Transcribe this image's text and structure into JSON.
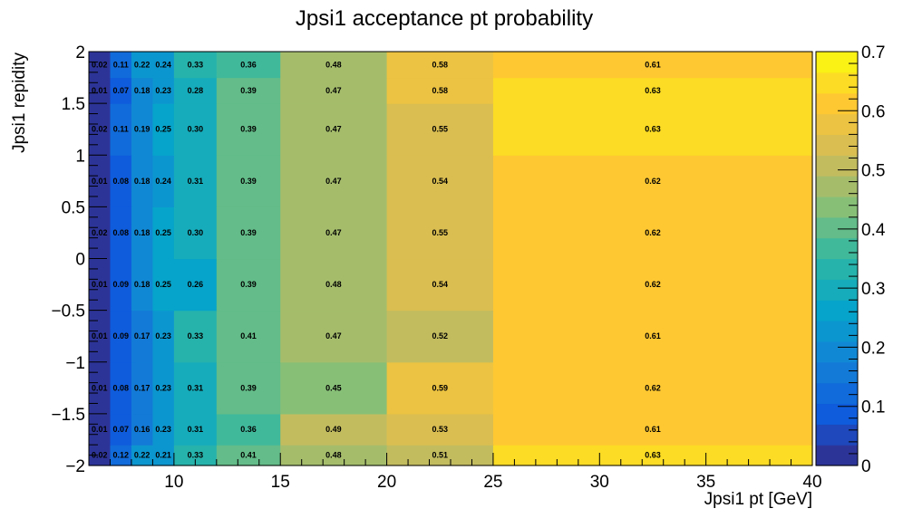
{
  "chart_data": {
    "type": "heatmap",
    "title": "Jpsi1 acceptance pt probability",
    "xlabel": "Jpsi1 pt [GeV]",
    "ylabel": "Jpsi1 repidity",
    "x_edges": [
      6,
      7,
      8,
      9,
      10,
      12,
      15,
      20,
      25,
      40
    ],
    "y_edges": [
      -2,
      -1.8,
      -1.5,
      -1,
      -0.5,
      0,
      0.5,
      1,
      1.5,
      1.75,
      2
    ],
    "xlim": [
      6,
      40
    ],
    "ylim": [
      -2,
      2
    ],
    "x_ticks": [
      10,
      15,
      20,
      25,
      30,
      35,
      40
    ],
    "y_ticks": [
      -2,
      -1.5,
      -1,
      -0.5,
      0,
      0.5,
      1,
      1.5,
      2
    ],
    "y_tick_labels": [
      "−2",
      "−1.5",
      "−1",
      "−0.5",
      "0",
      "0.5",
      "1",
      "1.5",
      "2"
    ],
    "colorbar": {
      "range": [
        0,
        0.7
      ],
      "ticks": [
        0,
        0.1,
        0.2,
        0.3,
        0.4,
        0.5,
        0.6,
        0.7
      ],
      "tick_labels": [
        "0",
        "0.1",
        "0.2",
        "0.3",
        "0.4",
        "0.5",
        "0.6",
        "0.7"
      ],
      "levels": 20
    },
    "palette": [
      "#352a87",
      "#0f5cdd",
      "#1481d6",
      "#06a4ca",
      "#2eb7a4",
      "#87bf77",
      "#d1bb59",
      "#fec832",
      "#f9fb0e"
    ],
    "values": [
      [
        "0.02",
        "0.12",
        "0.22",
        "0.21",
        "0.33",
        "0.41",
        "0.48",
        "0.51",
        "0.63"
      ],
      [
        "0.01",
        "0.07",
        "0.16",
        "0.23",
        "0.31",
        "0.36",
        "0.49",
        "0.53",
        "0.61"
      ],
      [
        "0.01",
        "0.08",
        "0.17",
        "0.23",
        "0.31",
        "0.39",
        "0.45",
        "0.59",
        "0.62"
      ],
      [
        "0.01",
        "0.09",
        "0.17",
        "0.23",
        "0.33",
        "0.41",
        "0.47",
        "0.52",
        "0.61"
      ],
      [
        "0.01",
        "0.09",
        "0.18",
        "0.25",
        "0.26",
        "0.39",
        "0.48",
        "0.54",
        "0.62"
      ],
      [
        "0.02",
        "0.08",
        "0.18",
        "0.25",
        "0.30",
        "0.39",
        "0.47",
        "0.55",
        "0.62"
      ],
      [
        "0.01",
        "0.08",
        "0.18",
        "0.24",
        "0.31",
        "0.39",
        "0.47",
        "0.54",
        "0.62"
      ],
      [
        "0.02",
        "0.11",
        "0.19",
        "0.25",
        "0.30",
        "0.39",
        "0.47",
        "0.55",
        "0.63"
      ],
      [
        "0.01",
        "0.07",
        "0.18",
        "0.23",
        "0.28",
        "0.39",
        "0.47",
        "0.58",
        "0.63"
      ],
      [
        "0.02",
        "0.11",
        "0.22",
        "0.24",
        "0.33",
        "0.36",
        "0.48",
        "0.58",
        "0.61"
      ]
    ]
  }
}
